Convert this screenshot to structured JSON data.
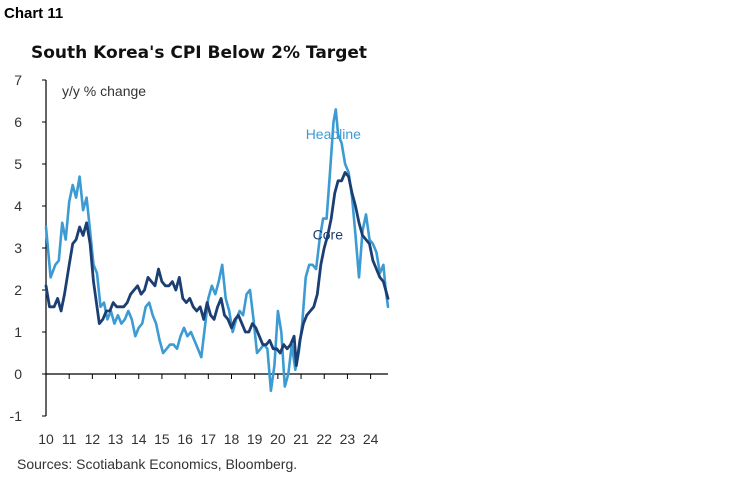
{
  "chart_label": "Chart 11",
  "source": "Sources: Scotiabank Economics, Bloomberg.",
  "colors": {
    "headline": "#3d9bd3",
    "core": "#1b3f73",
    "axis": "#000000"
  },
  "chart_data": {
    "type": "line",
    "title": "South Korea's CPI Below 2% Target",
    "ylabel": "y/y % change",
    "xlabel": "",
    "ylim": [
      -1,
      7
    ],
    "xlim": [
      2010.0,
      2024.75
    ],
    "yticks": [
      -1,
      0,
      1,
      2,
      3,
      4,
      5,
      6,
      7
    ],
    "xticks": [
      "10",
      "11",
      "12",
      "13",
      "14",
      "15",
      "16",
      "17",
      "18",
      "19",
      "20",
      "21",
      "22",
      "23",
      "24"
    ],
    "grid": false,
    "series": [
      {
        "name": "Headline",
        "color": "#3d9bd3",
        "points": [
          [
            2010.0,
            3.5
          ],
          [
            2010.2,
            2.3
          ],
          [
            2010.4,
            2.6
          ],
          [
            2010.55,
            2.7
          ],
          [
            2010.7,
            3.6
          ],
          [
            2010.85,
            3.2
          ],
          [
            2011.0,
            4.1
          ],
          [
            2011.15,
            4.5
          ],
          [
            2011.3,
            4.2
          ],
          [
            2011.45,
            4.7
          ],
          [
            2011.6,
            3.9
          ],
          [
            2011.75,
            4.2
          ],
          [
            2011.9,
            3.4
          ],
          [
            2012.05,
            2.6
          ],
          [
            2012.2,
            2.4
          ],
          [
            2012.35,
            1.6
          ],
          [
            2012.5,
            1.7
          ],
          [
            2012.65,
            1.3
          ],
          [
            2012.8,
            1.5
          ],
          [
            2012.95,
            1.2
          ],
          [
            2013.1,
            1.4
          ],
          [
            2013.25,
            1.2
          ],
          [
            2013.4,
            1.3
          ],
          [
            2013.55,
            1.5
          ],
          [
            2013.7,
            1.3
          ],
          [
            2013.85,
            0.9
          ],
          [
            2014.0,
            1.1
          ],
          [
            2014.15,
            1.2
          ],
          [
            2014.3,
            1.6
          ],
          [
            2014.45,
            1.7
          ],
          [
            2014.6,
            1.4
          ],
          [
            2014.75,
            1.2
          ],
          [
            2014.9,
            0.8
          ],
          [
            2015.05,
            0.5
          ],
          [
            2015.2,
            0.6
          ],
          [
            2015.35,
            0.7
          ],
          [
            2015.5,
            0.7
          ],
          [
            2015.65,
            0.6
          ],
          [
            2015.8,
            0.9
          ],
          [
            2015.95,
            1.1
          ],
          [
            2016.1,
            0.9
          ],
          [
            2016.25,
            1.0
          ],
          [
            2016.4,
            0.8
          ],
          [
            2016.55,
            0.6
          ],
          [
            2016.7,
            0.4
          ],
          [
            2016.85,
            1.1
          ],
          [
            2017.0,
            1.8
          ],
          [
            2017.15,
            2.1
          ],
          [
            2017.3,
            1.9
          ],
          [
            2017.45,
            2.2
          ],
          [
            2017.6,
            2.6
          ],
          [
            2017.75,
            1.8
          ],
          [
            2017.9,
            1.5
          ],
          [
            2018.05,
            1.0
          ],
          [
            2018.2,
            1.3
          ],
          [
            2018.35,
            1.5
          ],
          [
            2018.5,
            1.4
          ],
          [
            2018.65,
            1.9
          ],
          [
            2018.8,
            2.0
          ],
          [
            2018.95,
            1.3
          ],
          [
            2019.1,
            0.5
          ],
          [
            2019.25,
            0.6
          ],
          [
            2019.4,
            0.7
          ],
          [
            2019.55,
            0.6
          ],
          [
            2019.7,
            -0.4
          ],
          [
            2019.85,
            0.2
          ],
          [
            2020.0,
            1.5
          ],
          [
            2020.15,
            1.0
          ],
          [
            2020.3,
            -0.3
          ],
          [
            2020.45,
            0.0
          ],
          [
            2020.6,
            0.7
          ],
          [
            2020.75,
            0.1
          ],
          [
            2020.9,
            0.5
          ],
          [
            2021.05,
            1.2
          ],
          [
            2021.2,
            2.3
          ],
          [
            2021.35,
            2.6
          ],
          [
            2021.5,
            2.6
          ],
          [
            2021.65,
            2.5
          ],
          [
            2021.8,
            3.2
          ],
          [
            2021.95,
            3.7
          ],
          [
            2022.1,
            3.7
          ],
          [
            2022.25,
            4.8
          ],
          [
            2022.4,
            6.0
          ],
          [
            2022.5,
            6.3
          ],
          [
            2022.6,
            5.7
          ],
          [
            2022.75,
            5.5
          ],
          [
            2022.9,
            5.0
          ],
          [
            2023.05,
            4.8
          ],
          [
            2023.2,
            4.2
          ],
          [
            2023.35,
            3.3
          ],
          [
            2023.5,
            2.3
          ],
          [
            2023.65,
            3.4
          ],
          [
            2023.8,
            3.8
          ],
          [
            2023.95,
            3.2
          ],
          [
            2024.1,
            3.1
          ],
          [
            2024.25,
            2.9
          ],
          [
            2024.4,
            2.4
          ],
          [
            2024.55,
            2.6
          ],
          [
            2024.65,
            2.0
          ],
          [
            2024.75,
            1.6
          ]
        ]
      },
      {
        "name": "Core",
        "color": "#1b3f73",
        "points": [
          [
            2010.0,
            2.1
          ],
          [
            2010.15,
            1.6
          ],
          [
            2010.35,
            1.6
          ],
          [
            2010.5,
            1.8
          ],
          [
            2010.65,
            1.5
          ],
          [
            2010.8,
            1.9
          ],
          [
            2011.0,
            2.6
          ],
          [
            2011.15,
            3.1
          ],
          [
            2011.3,
            3.2
          ],
          [
            2011.45,
            3.5
          ],
          [
            2011.6,
            3.3
          ],
          [
            2011.75,
            3.6
          ],
          [
            2011.9,
            3.1
          ],
          [
            2012.05,
            2.2
          ],
          [
            2012.2,
            1.6
          ],
          [
            2012.3,
            1.2
          ],
          [
            2012.45,
            1.3
          ],
          [
            2012.6,
            1.5
          ],
          [
            2012.75,
            1.5
          ],
          [
            2012.9,
            1.7
          ],
          [
            2013.05,
            1.6
          ],
          [
            2013.2,
            1.6
          ],
          [
            2013.35,
            1.6
          ],
          [
            2013.5,
            1.7
          ],
          [
            2013.65,
            1.9
          ],
          [
            2013.8,
            2.0
          ],
          [
            2013.95,
            2.1
          ],
          [
            2014.1,
            1.9
          ],
          [
            2014.25,
            2.0
          ],
          [
            2014.4,
            2.3
          ],
          [
            2014.55,
            2.2
          ],
          [
            2014.7,
            2.1
          ],
          [
            2014.85,
            2.5
          ],
          [
            2015.0,
            2.2
          ],
          [
            2015.15,
            2.1
          ],
          [
            2015.3,
            2.1
          ],
          [
            2015.45,
            2.2
          ],
          [
            2015.6,
            2.0
          ],
          [
            2015.75,
            2.3
          ],
          [
            2015.9,
            1.8
          ],
          [
            2016.05,
            1.7
          ],
          [
            2016.2,
            1.8
          ],
          [
            2016.35,
            1.6
          ],
          [
            2016.5,
            1.5
          ],
          [
            2016.65,
            1.6
          ],
          [
            2016.8,
            1.3
          ],
          [
            2016.95,
            1.7
          ],
          [
            2017.1,
            1.4
          ],
          [
            2017.25,
            1.3
          ],
          [
            2017.4,
            1.6
          ],
          [
            2017.55,
            1.8
          ],
          [
            2017.7,
            1.4
          ],
          [
            2017.85,
            1.3
          ],
          [
            2018.0,
            1.1
          ],
          [
            2018.15,
            1.3
          ],
          [
            2018.3,
            1.4
          ],
          [
            2018.45,
            1.2
          ],
          [
            2018.6,
            1.0
          ],
          [
            2018.75,
            1.0
          ],
          [
            2018.9,
            1.2
          ],
          [
            2019.05,
            1.1
          ],
          [
            2019.2,
            0.9
          ],
          [
            2019.35,
            0.7
          ],
          [
            2019.5,
            0.7
          ],
          [
            2019.65,
            0.8
          ],
          [
            2019.8,
            0.6
          ],
          [
            2019.95,
            0.6
          ],
          [
            2020.1,
            0.5
          ],
          [
            2020.25,
            0.7
          ],
          [
            2020.4,
            0.6
          ],
          [
            2020.55,
            0.7
          ],
          [
            2020.7,
            0.9
          ],
          [
            2020.8,
            0.2
          ],
          [
            2020.95,
            0.8
          ],
          [
            2021.1,
            1.2
          ],
          [
            2021.25,
            1.4
          ],
          [
            2021.4,
            1.5
          ],
          [
            2021.55,
            1.6
          ],
          [
            2021.7,
            1.9
          ],
          [
            2021.85,
            2.6
          ],
          [
            2022.0,
            3.0
          ],
          [
            2022.15,
            3.3
          ],
          [
            2022.3,
            3.7
          ],
          [
            2022.45,
            4.3
          ],
          [
            2022.6,
            4.6
          ],
          [
            2022.75,
            4.6
          ],
          [
            2022.9,
            4.8
          ],
          [
            2023.05,
            4.7
          ],
          [
            2023.2,
            4.3
          ],
          [
            2023.35,
            4.0
          ],
          [
            2023.5,
            3.6
          ],
          [
            2023.65,
            3.3
          ],
          [
            2023.8,
            3.2
          ],
          [
            2023.95,
            3.1
          ],
          [
            2024.1,
            2.7
          ],
          [
            2024.25,
            2.5
          ],
          [
            2024.4,
            2.3
          ],
          [
            2024.55,
            2.2
          ],
          [
            2024.65,
            2.0
          ],
          [
            2024.75,
            1.8
          ]
        ]
      }
    ],
    "annotations": [
      {
        "text": "Headline",
        "series": "Headline",
        "anchor": [
          2021.2,
          5.6
        ]
      },
      {
        "text": "Core",
        "series": "Core",
        "anchor": [
          2021.5,
          3.2
        ]
      }
    ]
  }
}
